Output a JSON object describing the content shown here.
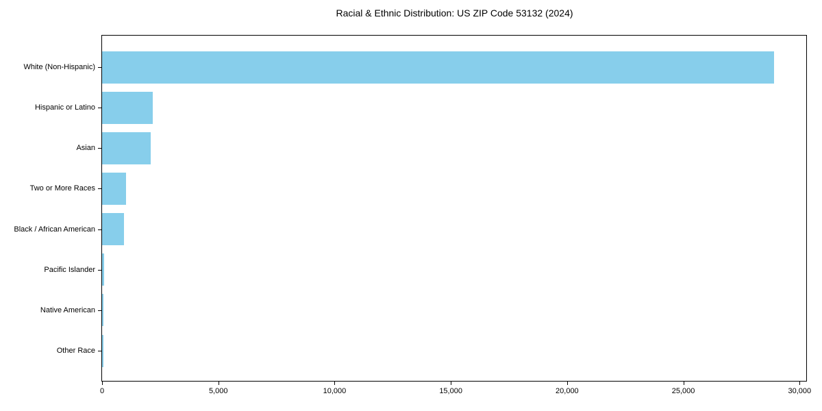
{
  "figure": {
    "title": "Racial & Ethnic Distribution: US ZIP Code 53132 (2024)"
  },
  "chart_data": {
    "type": "bar",
    "orientation": "horizontal",
    "title": "Racial & Ethnic Distribution: US ZIP Code 53132 (2024)",
    "categories": [
      "White (Non-Hispanic)",
      "Hispanic or Latino",
      "Asian",
      "Two or More Races",
      "Black / African American",
      "Pacific Islander",
      "Native American",
      "Other Race"
    ],
    "values": [
      28900,
      2170,
      2080,
      1030,
      930,
      80,
      70,
      60
    ],
    "xlabel": "",
    "ylabel": "",
    "xlim": [
      0,
      30345
    ],
    "x_ticks": [
      0,
      5000,
      10000,
      15000,
      20000,
      25000,
      30000
    ],
    "x_tick_labels": [
      "0",
      "5,000",
      "10,000",
      "15,000",
      "20,000",
      "25,000",
      "30,000"
    ],
    "bar_color": "#87CEEB",
    "axis_color": "#000000",
    "background": "#FFFFFF",
    "grid": false,
    "legend": "none"
  }
}
